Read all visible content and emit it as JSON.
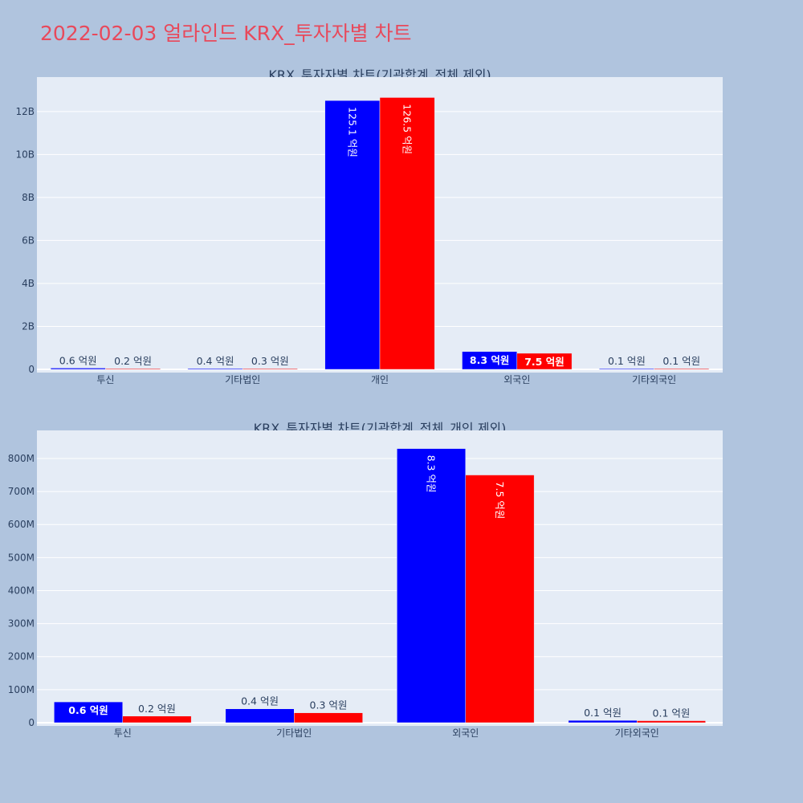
{
  "page_title": "2022-02-03 얼라인드 KRX_투자자별 차트",
  "colors": {
    "buy": "#0000ff",
    "sell": "#ff0000",
    "title": "#e8495b",
    "plot_bg": "#e5ecf6",
    "page_bg": "#b0c4de"
  },
  "chart_data": [
    {
      "type": "bar",
      "title": "KRX_투자자별 차트(기관합계_전체 제외)",
      "categories": [
        "투신",
        "기타법인",
        "개인",
        "외국인",
        "기타외국인"
      ],
      "series": [
        {
          "values": [
            60000000,
            40000000,
            12510000000,
            830000000,
            10000000
          ],
          "labels": [
            "0.6 억원",
            "0.4 억원",
            "125.1 억원",
            "8.3 억원",
            "0.1 억원"
          ]
        },
        {
          "values": [
            20000000,
            30000000,
            12650000000,
            750000000,
            10000000
          ],
          "labels": [
            "0.2 억원",
            "0.3 억원",
            "126.5 억원",
            "7.5 억원",
            "0.1 억원"
          ]
        }
      ],
      "ylim": [
        0,
        13600000000
      ],
      "yticks": [
        0,
        2000000000,
        4000000000,
        6000000000,
        8000000000,
        10000000000,
        12000000000
      ],
      "ytick_labels": [
        "0",
        "2B",
        "4B",
        "6B",
        "8B",
        "10B",
        "12B"
      ],
      "grid": true
    },
    {
      "type": "bar",
      "title": "KRX_투자자별 차트(기관합계_전체_개인 제외)",
      "categories": [
        "투신",
        "기타법인",
        "외국인",
        "기타외국인"
      ],
      "series": [
        {
          "values": [
            63000000,
            42000000,
            830000000,
            7000000
          ],
          "labels": [
            "0.6 억원",
            "0.4 억원",
            "8.3 억원",
            "0.1 억원"
          ]
        },
        {
          "values": [
            20000000,
            30000000,
            750000000,
            6000000
          ],
          "labels": [
            "0.2 억원",
            "0.3 억원",
            "7.5 억원",
            "0.1 억원"
          ]
        }
      ],
      "ylim": [
        0,
        885000000
      ],
      "yticks": [
        0,
        100000000,
        200000000,
        300000000,
        400000000,
        500000000,
        600000000,
        700000000,
        800000000
      ],
      "ytick_labels": [
        "0",
        "100M",
        "200M",
        "300M",
        "400M",
        "500M",
        "600M",
        "700M",
        "800M"
      ],
      "grid": true
    }
  ]
}
